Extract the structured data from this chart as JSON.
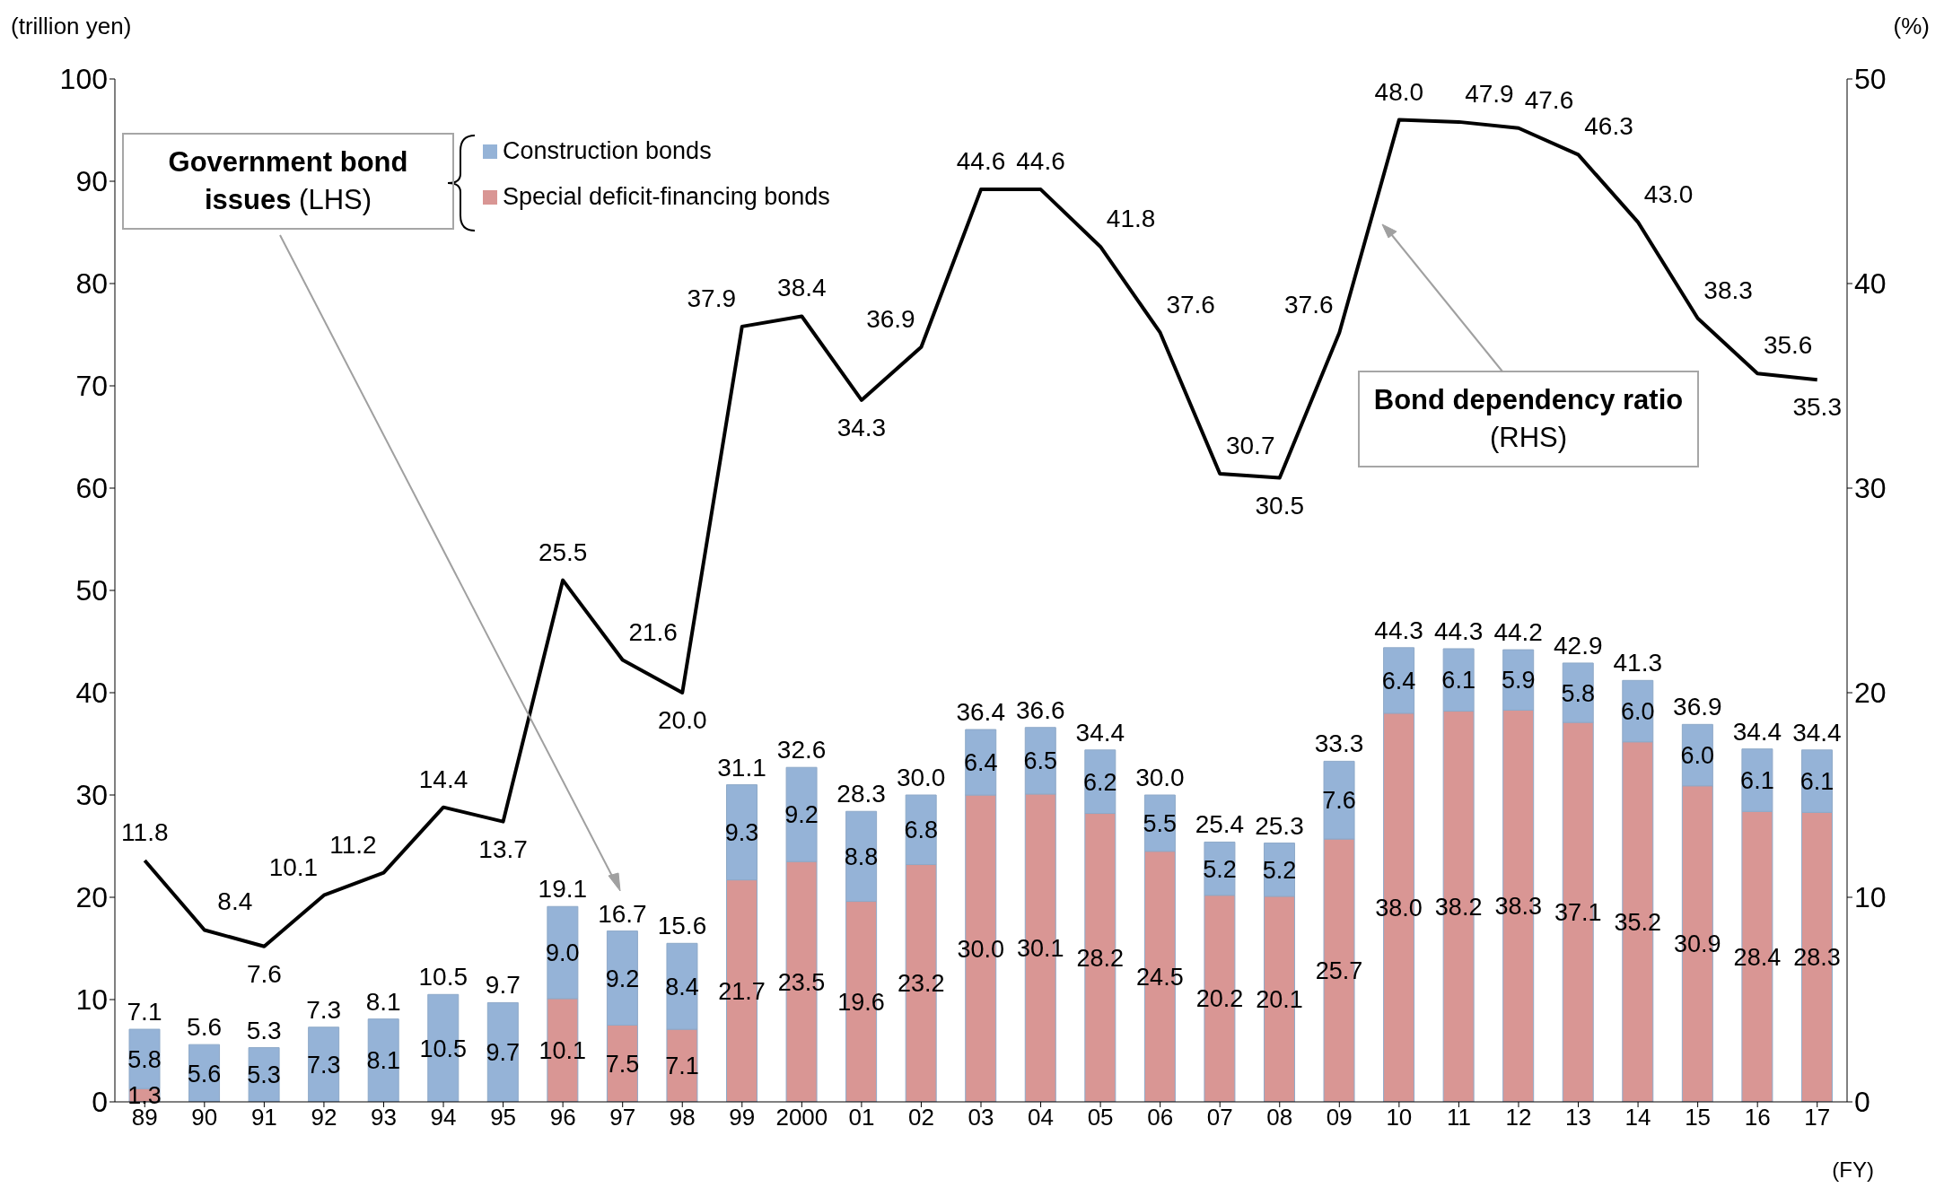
{
  "chart_data": {
    "type": "bar",
    "ylabel": "(trillion yen)",
    "y2label": "(%)",
    "xlabel": "(FY)",
    "categories": [
      "89",
      "90",
      "91",
      "92",
      "93",
      "94",
      "95",
      "96",
      "97",
      "98",
      "99",
      "2000",
      "01",
      "02",
      "03",
      "04",
      "05",
      "06",
      "07",
      "08",
      "09",
      "10",
      "11",
      "12",
      "13",
      "14",
      "15",
      "16",
      "17"
    ],
    "stacked": true,
    "legend": "top left",
    "marker": "none",
    "line_style": "solid",
    "ylim": [
      0,
      100
    ],
    "yticks": [
      0,
      10,
      20,
      30,
      40,
      50,
      60,
      70,
      80,
      90,
      100
    ],
    "y2lim": [
      0,
      50
    ],
    "y2ticks": [
      0,
      10,
      20,
      30,
      40,
      50
    ],
    "series": [
      {
        "name": "Special deficit-financing bonds",
        "color": "#d99694",
        "values": [
          1.3,
          null,
          null,
          null,
          null,
          null,
          null,
          10.1,
          7.5,
          7.1,
          21.7,
          23.5,
          19.6,
          23.2,
          30.0,
          30.1,
          28.2,
          24.5,
          20.2,
          20.1,
          25.7,
          38.0,
          38.2,
          38.3,
          37.1,
          35.2,
          30.9,
          28.4,
          28.3
        ],
        "value_labels": [
          "1.3",
          null,
          null,
          null,
          null,
          null,
          null,
          "10.1",
          "7.5",
          "7.1",
          "21.7",
          "23.5",
          "19.6",
          "23.2",
          "30.0",
          "30.1",
          "28.2",
          "24.5",
          "20.2",
          "20.1",
          "25.7",
          "38.0",
          "38.2",
          "38.3",
          "37.1",
          "35.2",
          "30.9",
          "28.4",
          "28.3"
        ]
      },
      {
        "name": "Construction bonds",
        "color": "#95b3d7",
        "values": [
          5.8,
          5.6,
          5.3,
          7.3,
          8.1,
          10.5,
          9.7,
          9.0,
          9.2,
          8.4,
          9.3,
          9.2,
          8.8,
          6.8,
          6.4,
          6.5,
          6.2,
          5.5,
          5.2,
          5.2,
          7.6,
          6.4,
          6.1,
          5.9,
          5.8,
          6.0,
          6.0,
          6.1,
          6.1
        ],
        "value_labels": [
          "5.8",
          "5.6",
          "5.3",
          "7.3",
          "8.1",
          "10.5",
          "9.7",
          "9.0",
          "9.2",
          "8.4",
          "9.3",
          "9.2",
          "8.8",
          "6.8",
          "6.4",
          "6.5",
          "6.2",
          "5.5",
          "5.2",
          "5.2",
          "7.6",
          "6.4",
          "6.1",
          "5.9",
          "5.8",
          "6.0",
          "6.0",
          "6.1",
          "6.1"
        ]
      },
      {
        "type": "line",
        "axis": "y2",
        "color": "#000000",
        "values": [
          11.8,
          8.4,
          7.6,
          10.1,
          11.2,
          14.4,
          13.7,
          25.5,
          21.6,
          20.0,
          37.9,
          38.4,
          34.3,
          36.9,
          44.6,
          44.6,
          41.8,
          37.6,
          30.7,
          30.5,
          37.6,
          48.0,
          47.9,
          47.6,
          46.3,
          43.0,
          38.3,
          35.6,
          35.3
        ],
        "value_labels": [
          "11.8",
          "8.4",
          "7.6",
          "10.1",
          "11.2",
          "14.4",
          "13.7",
          "25.5",
          "21.6",
          "20.0",
          "37.9",
          "38.4",
          "34.3",
          "36.9",
          "44.6",
          "44.6",
          "41.8",
          "37.6",
          "30.7",
          "30.5",
          "37.6",
          "48.0",
          "47.9",
          "47.6",
          "46.3",
          "43.0",
          "38.3",
          "35.6",
          "35.3"
        ]
      }
    ],
    "totals": [
      "7.1",
      "5.6",
      "5.3",
      "7.3",
      "8.1",
      "10.5",
      "9.7",
      "19.1",
      "16.7",
      "15.6",
      "31.1",
      "32.6",
      "28.3",
      "30.0",
      "36.4",
      "36.6",
      "34.4",
      "30.0",
      "25.4",
      "25.3",
      "33.3",
      "44.3",
      "44.3",
      "44.2",
      "42.9",
      "41.3",
      "36.9",
      "34.4",
      "34.4"
    ],
    "annotations": [
      "Government bond issues (LHS)",
      "Bond dependency ratio (RHS)"
    ]
  }
}
